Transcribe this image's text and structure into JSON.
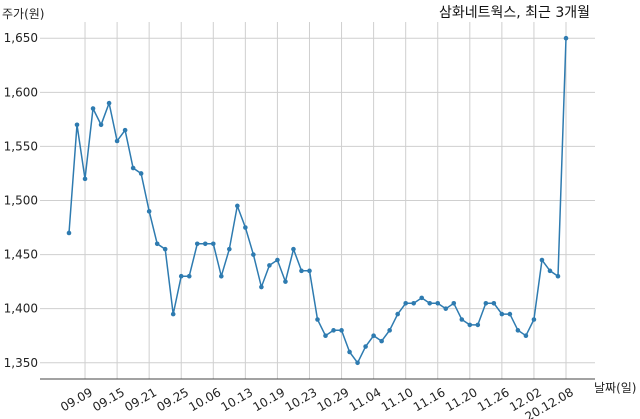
{
  "chart_data": {
    "type": "line",
    "title": "삼화네트웍스, 최근 3개월",
    "xlabel": "날짜(일)",
    "ylabel": "주가(원)",
    "ylim": [
      1335,
      1665
    ],
    "yticks": [
      1350,
      1400,
      1450,
      1500,
      1550,
      1600,
      1650
    ],
    "ytick_labels": [
      "1,350",
      "1,400",
      "1,450",
      "1,500",
      "1,550",
      "1,600",
      "1,650"
    ],
    "xtick_labels": [
      "09.09",
      "09.15",
      "09.21",
      "09.25",
      "10.06",
      "10.13",
      "10.19",
      "10.23",
      "10.29",
      "11.04",
      "11.10",
      "11.16",
      "11.20",
      "11.26",
      "12.02",
      "20.12.08"
    ],
    "xtick_positions": [
      2,
      6,
      10,
      14,
      18,
      22,
      26,
      30,
      34,
      38,
      42,
      46,
      50,
      54,
      58,
      62
    ],
    "grid": true,
    "line_color": "#2e7bb0",
    "series": [
      {
        "values": [
          1470,
          1570,
          1520,
          1585,
          1570,
          1590,
          1555,
          1565,
          1530,
          1525,
          1490,
          1460,
          1455,
          1395,
          1430,
          1430,
          1460,
          1460,
          1460,
          1430,
          1455,
          1495,
          1475,
          1450,
          1420,
          1440,
          1445,
          1425,
          1455,
          1435,
          1435,
          1390,
          1375,
          1380,
          1380,
          1360,
          1350,
          1365,
          1375,
          1370,
          1380,
          1395,
          1405,
          1405,
          1410,
          1405,
          1405,
          1400,
          1405,
          1390,
          1385,
          1385,
          1405,
          1405,
          1395,
          1395,
          1380,
          1375,
          1390,
          1445,
          1435,
          1430,
          1650
        ]
      }
    ]
  }
}
